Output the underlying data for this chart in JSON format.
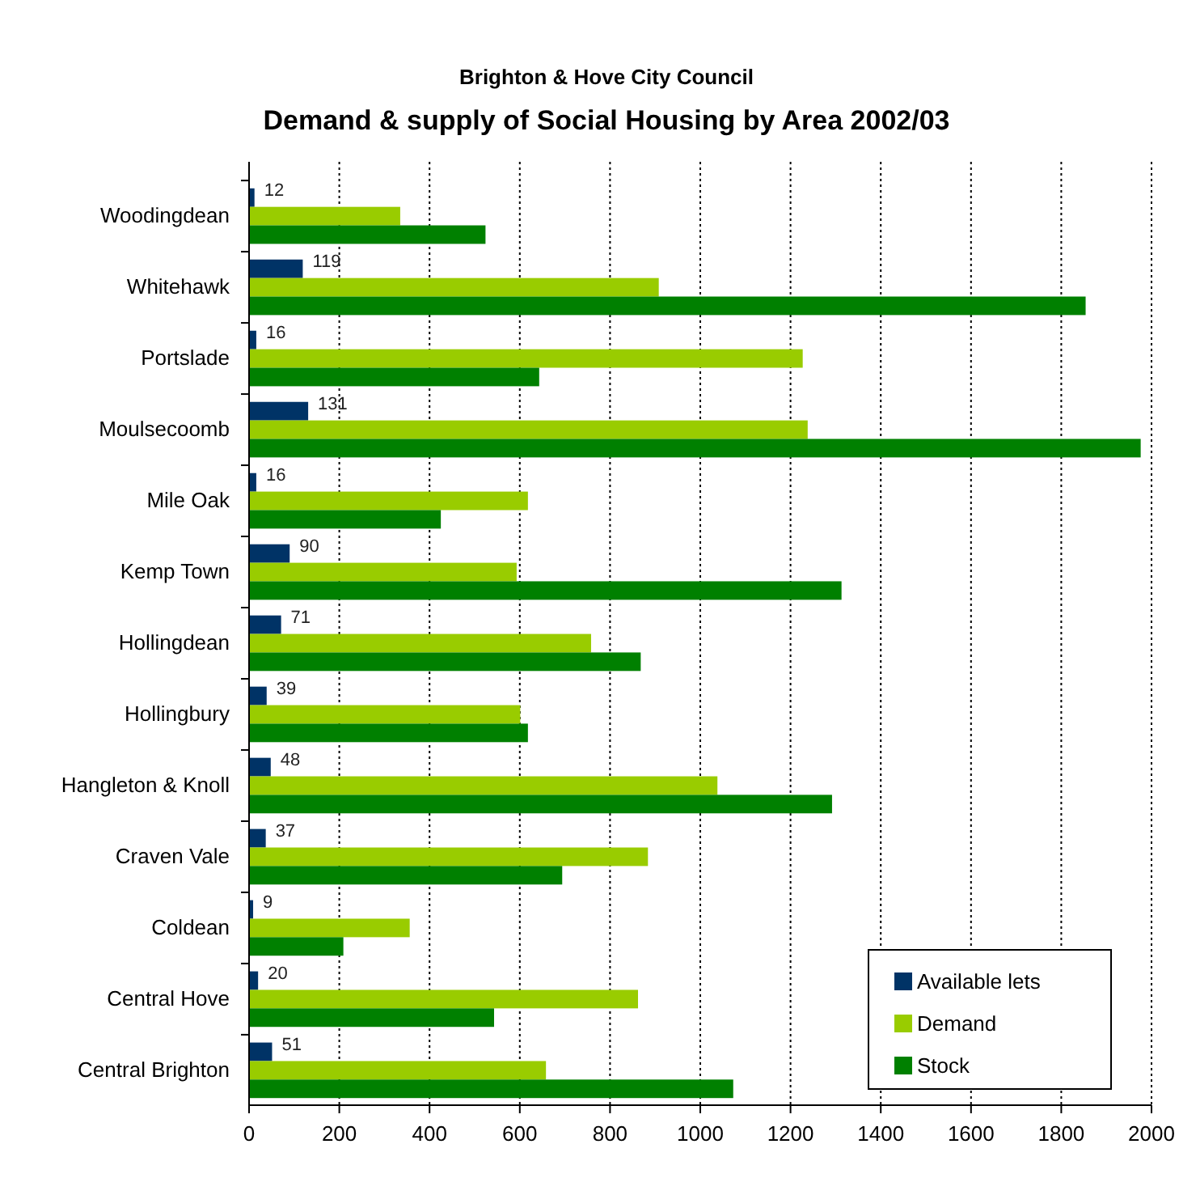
{
  "chart_data": {
    "type": "bar",
    "orientation": "horizontal",
    "title": "Demand & supply of Social Housing by Area 2002/03",
    "subtitle": "Brighton & Hove City Council",
    "categories": [
      "Woodingdean",
      "Whitehawk",
      "Portslade",
      "Moulsecoomb",
      "Mile Oak",
      "Kemp Town",
      "Hollingdean",
      "Hollingbury",
      "Hangleton & Knoll",
      "Craven Vale",
      "Coldean",
      "Central Hove",
      "Central Brighton"
    ],
    "series": [
      {
        "name": "Available lets",
        "color": "#003366",
        "values": [
          12,
          119,
          16,
          131,
          16,
          90,
          71,
          39,
          48,
          37,
          9,
          20,
          51
        ],
        "value_labels": [
          "12",
          "119",
          "16",
          "131",
          "16",
          "90",
          "71",
          "39",
          "48",
          "37",
          "9",
          "20",
          "51"
        ]
      },
      {
        "name": "Demand",
        "color": "#99cc00",
        "values": [
          335,
          908,
          1227,
          1238,
          618,
          593,
          758,
          601,
          1038,
          884,
          356,
          862,
          658
        ]
      },
      {
        "name": "Stock",
        "color": "#008000",
        "values": [
          524,
          1854,
          643,
          1976,
          425,
          1313,
          868,
          618,
          1292,
          694,
          209,
          543,
          1073
        ]
      }
    ],
    "xlim": [
      0,
      2000
    ],
    "xticks": [
      0,
      200,
      400,
      600,
      800,
      1000,
      1200,
      1400,
      1600,
      1800,
      2000
    ],
    "grid": "x",
    "legend": "bottom right"
  }
}
